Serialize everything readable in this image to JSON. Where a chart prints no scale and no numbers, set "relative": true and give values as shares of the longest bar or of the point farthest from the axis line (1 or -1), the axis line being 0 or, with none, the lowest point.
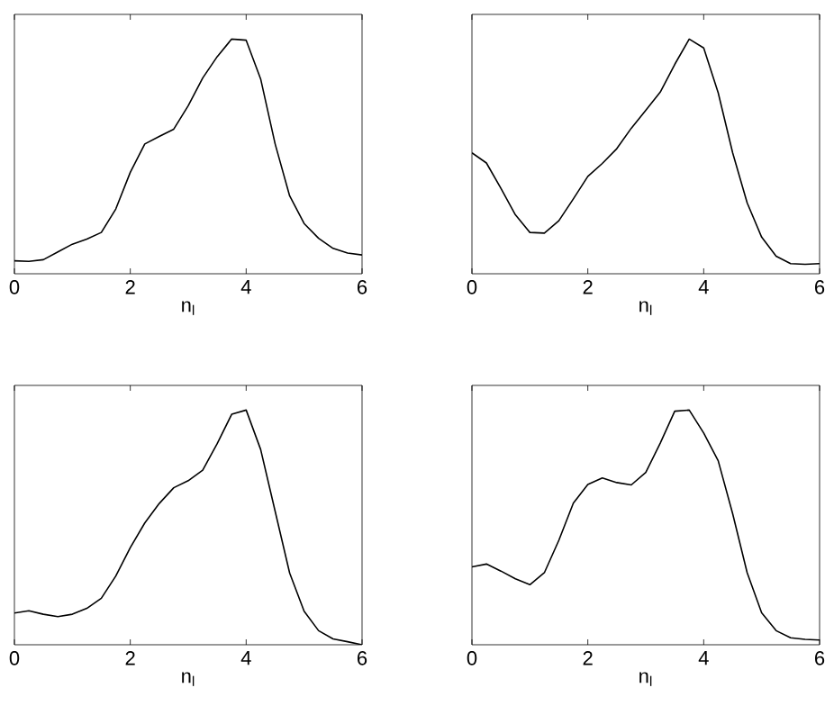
{
  "chart_data": [
    {
      "type": "line",
      "relative": true,
      "xlabel": "n$_{l}$",
      "xlim": [
        0,
        6
      ],
      "xticks": [
        0,
        2,
        4,
        6
      ],
      "tick_labels": "x",
      "x": [
        0,
        0.25,
        0.5,
        0.75,
        1,
        1.25,
        1.5,
        1.75,
        2,
        2.25,
        2.5,
        2.75,
        3,
        3.25,
        3.5,
        3.75,
        4,
        4.25,
        4.5,
        4.75,
        5,
        5.25,
        5.5,
        5.75,
        6
      ],
      "series": [
        {
          "color": "#000000",
          "values": [
            0.055,
            0.053,
            0.06,
            0.093,
            0.126,
            0.148,
            0.176,
            0.276,
            0.432,
            0.553,
            0.585,
            0.616,
            0.716,
            0.834,
            0.925,
            1.0,
            0.995,
            0.83,
            0.553,
            0.332,
            0.214,
            0.151,
            0.108,
            0.088,
            0.08
          ]
        }
      ]
    },
    {
      "type": "line",
      "relative": true,
      "xlabel": "n$_{l}$",
      "xlim": [
        0,
        6
      ],
      "xticks": [
        0,
        2,
        4,
        6
      ],
      "tick_labels": "x",
      "x": [
        0,
        0.25,
        0.5,
        0.75,
        1,
        1.25,
        1.5,
        1.75,
        2,
        2.25,
        2.5,
        2.75,
        3,
        3.25,
        3.5,
        3.75,
        4,
        4.25,
        4.5,
        4.75,
        5,
        5.25,
        5.5,
        5.75,
        6
      ],
      "series": [
        {
          "color": "#000000",
          "values": [
            0.515,
            0.472,
            0.364,
            0.251,
            0.176,
            0.173,
            0.226,
            0.319,
            0.415,
            0.47,
            0.533,
            0.62,
            0.696,
            0.774,
            0.892,
            1.0,
            0.962,
            0.771,
            0.515,
            0.302,
            0.156,
            0.075,
            0.043,
            0.04,
            0.043
          ]
        }
      ]
    },
    {
      "type": "line",
      "relative": true,
      "xlabel": "n$_{l}$",
      "xlim": [
        0,
        6
      ],
      "xticks": [
        0,
        2,
        4,
        6
      ],
      "tick_labels": "x",
      "x": [
        0,
        0.25,
        0.5,
        0.75,
        1,
        1.25,
        1.5,
        1.75,
        2,
        2.25,
        2.5,
        2.75,
        3,
        3.25,
        3.5,
        3.75,
        4,
        4.25,
        4.5,
        4.75,
        5,
        5.25,
        5.5,
        5.75,
        6
      ],
      "series": [
        {
          "color": "#000000",
          "values": [
            0.135,
            0.145,
            0.13,
            0.12,
            0.13,
            0.155,
            0.198,
            0.293,
            0.414,
            0.519,
            0.602,
            0.669,
            0.699,
            0.744,
            0.857,
            0.982,
            1.0,
            0.832,
            0.569,
            0.306,
            0.143,
            0.06,
            0.025,
            0.013,
            0.0
          ]
        }
      ]
    },
    {
      "type": "line",
      "relative": true,
      "xlabel": "n$_{l}$",
      "xlim": [
        0,
        6
      ],
      "xticks": [
        0,
        2,
        4,
        6
      ],
      "tick_labels": "x",
      "x": [
        0,
        0.25,
        0.5,
        0.75,
        1,
        1.25,
        1.5,
        1.75,
        2,
        2.25,
        2.5,
        2.75,
        3,
        3.25,
        3.5,
        3.75,
        4,
        4.25,
        4.5,
        4.75,
        5,
        5.25,
        5.5,
        5.75,
        6
      ],
      "series": [
        {
          "color": "#000000",
          "values": [
            0.332,
            0.344,
            0.314,
            0.281,
            0.256,
            0.307,
            0.445,
            0.603,
            0.683,
            0.711,
            0.691,
            0.681,
            0.734,
            0.859,
            0.995,
            1.0,
            0.902,
            0.784,
            0.558,
            0.307,
            0.136,
            0.06,
            0.03,
            0.023,
            0.02
          ]
        }
      ]
    }
  ]
}
